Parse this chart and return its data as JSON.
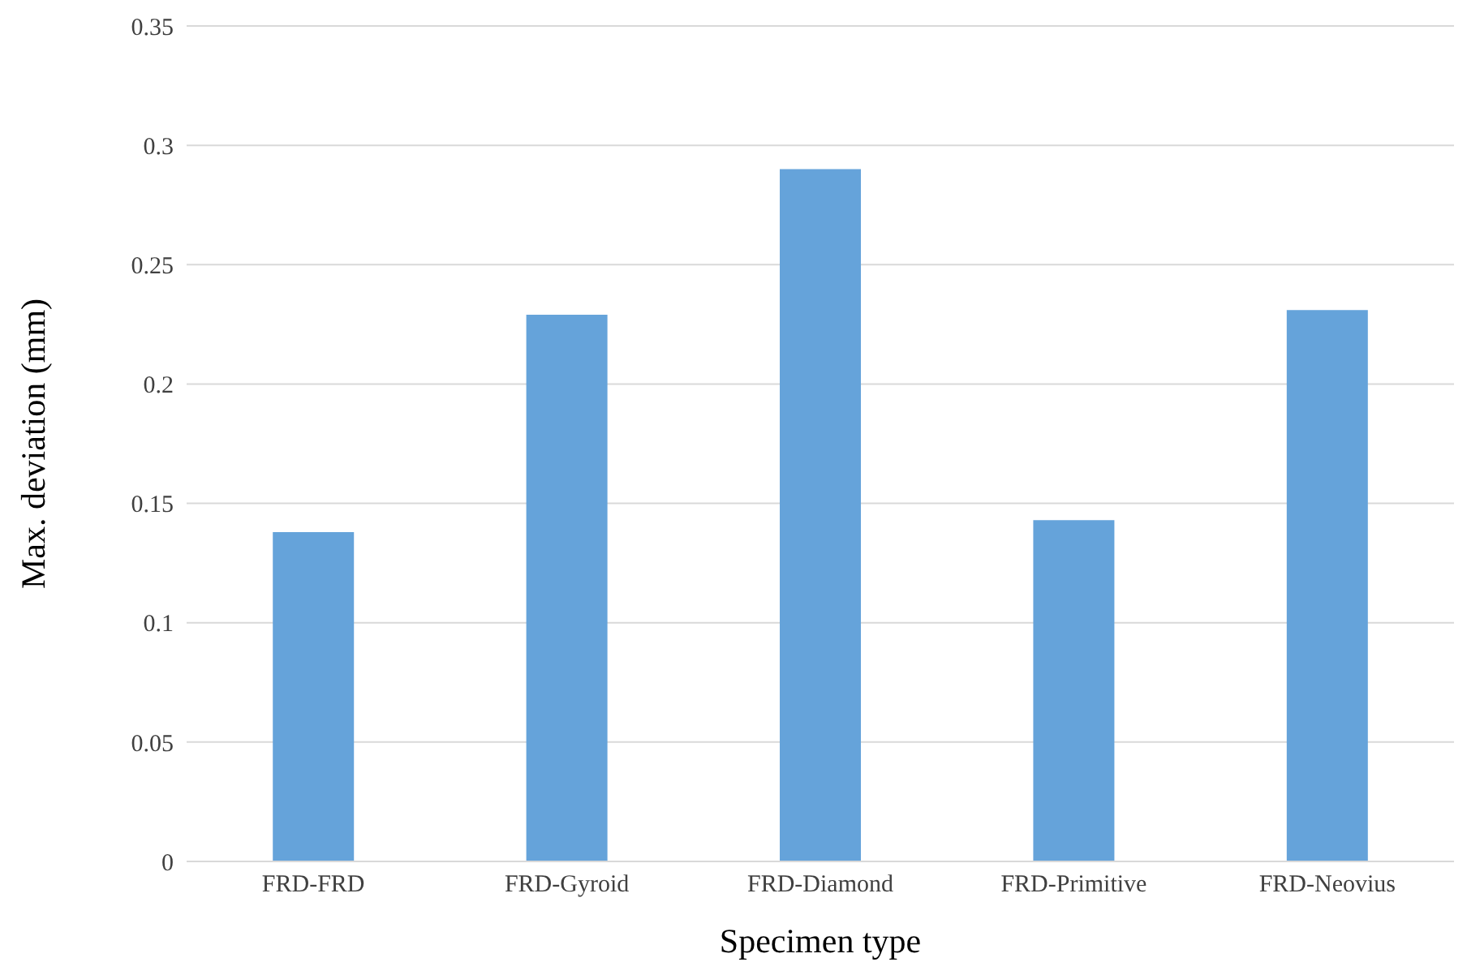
{
  "chart_data": {
    "type": "bar",
    "xlabel": "Specimen type",
    "ylabel": "Max. deviation (mm)",
    "categories": [
      "FRD-FRD",
      "FRD-Gyroid",
      "FRD-Diamond",
      "FRD-Primitive",
      "FRD-Neovius"
    ],
    "values": [
      0.138,
      0.229,
      0.29,
      0.143,
      0.231
    ],
    "color": "#65a3da",
    "ylim": [
      0,
      0.35
    ],
    "yticks": [
      0,
      0.05,
      0.1,
      0.15,
      0.2,
      0.25,
      0.3,
      0.35
    ],
    "grid": "y"
  }
}
